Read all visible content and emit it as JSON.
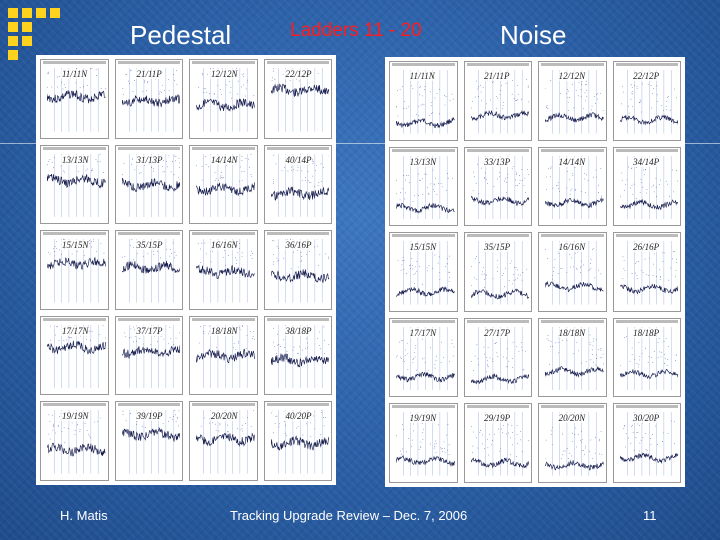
{
  "slide": {
    "title_left": "Pedestal",
    "title_center": "Ladders 11 - 20",
    "title_right": "Noise",
    "title_center_color": "#ff1c1c",
    "accent_color": "#ffd21e",
    "background_color": "#2a5fa6"
  },
  "pedestal": {
    "plots": [
      "11/11N",
      "21/11P",
      "12/12N",
      "22/12P",
      "13/13N",
      "31/13P",
      "14/14N",
      "40/14P",
      "15/15N",
      "35/15P",
      "16/16N",
      "36/16P",
      "17/17N",
      "37/17P",
      "18/18N",
      "38/18P",
      "19/19N",
      "39/19P",
      "20/20N",
      "40/20P"
    ]
  },
  "noise": {
    "plots": [
      "11/11N",
      "21/11P",
      "12/12N",
      "22/12P",
      "13/13N",
      "33/13P",
      "14/14N",
      "34/14P",
      "15/15N",
      "35/15P",
      "16/16N",
      "26/16P",
      "17/17N",
      "27/17P",
      "18/18N",
      "18/18P",
      "19/19N",
      "29/19P",
      "20/20N",
      "30/20P"
    ]
  },
  "footer": {
    "author": "H. Matis",
    "event": "Tracking Upgrade Review  –  Dec. 7, 2006",
    "page": "11"
  }
}
